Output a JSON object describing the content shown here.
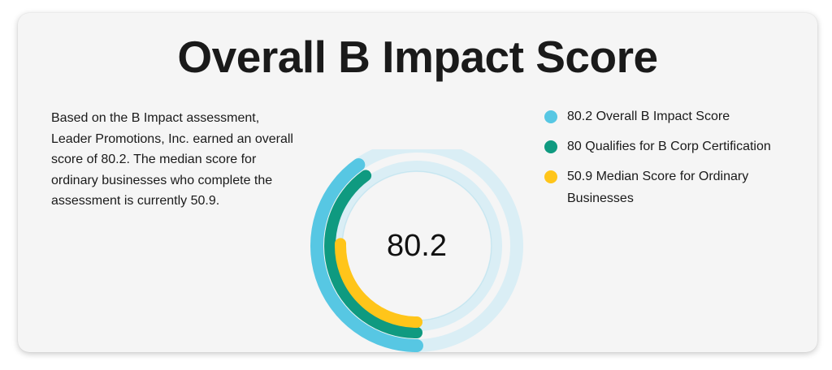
{
  "title": "Overall B Impact Score",
  "description": "Based on the B Impact assessment, Leader Promotions, Inc. earned an overall score of 80.2. The median score for ordinary businesses who complete the assessment is currently 50.9.",
  "chart_data": {
    "type": "radial-bar",
    "center_label": "80.2",
    "max": 200,
    "series": [
      {
        "name": "80.2 Overall B Impact Score",
        "value": 80.2,
        "color": "#57c7e3",
        "track_color": "#daeef5"
      },
      {
        "name": "80 Qualifies for B Corp Certification",
        "value": 80,
        "color": "#0f9a80"
      },
      {
        "name": "50.9 Median Score for Ordinary Businesses",
        "value": 50.9,
        "color": "#ffc51a"
      }
    ]
  }
}
